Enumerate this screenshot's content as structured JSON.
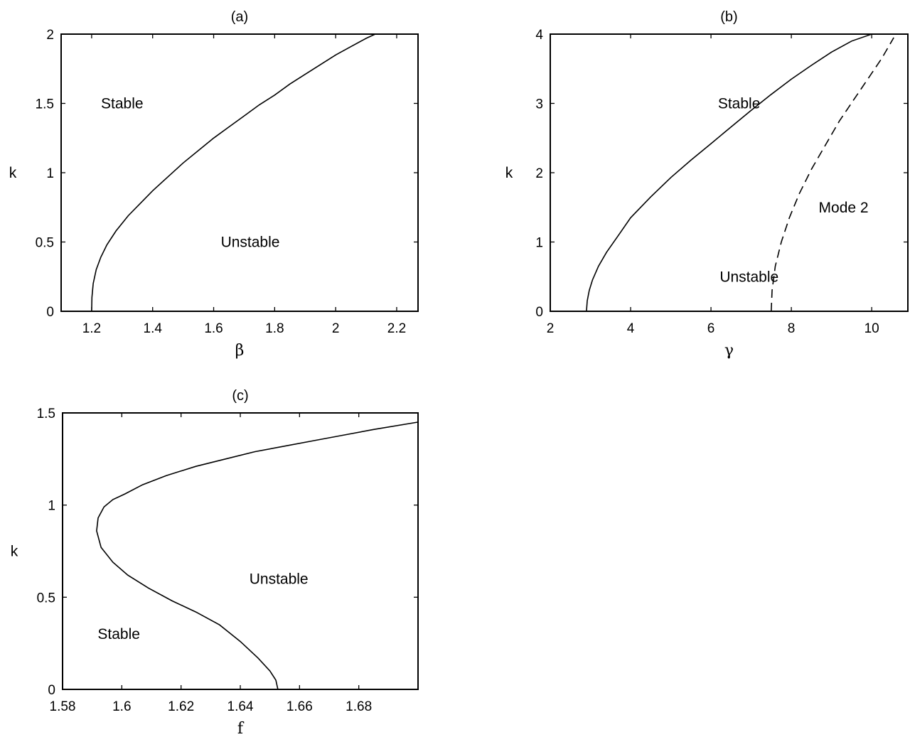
{
  "chart_data": [
    {
      "id": "a",
      "type": "line",
      "title": "(a)",
      "xlabel": "β",
      "ylabel": "k",
      "xlim": [
        1.1,
        2.27
      ],
      "ylim": [
        0,
        2
      ],
      "xticks": [
        1.2,
        1.4,
        1.6,
        1.8,
        2,
        2.2
      ],
      "xtick_labels": [
        "1.2",
        "1.4",
        "1.6",
        "1.8",
        "2",
        "2.2"
      ],
      "yticks": [
        0,
        0.5,
        1,
        1.5,
        2
      ],
      "ytick_labels": [
        "0",
        "0.5",
        "1",
        "1.5",
        "2"
      ],
      "grid": false,
      "series": [
        {
          "style": "solid",
          "x": [
            1.2,
            1.201,
            1.205,
            1.215,
            1.23,
            1.25,
            1.28,
            1.32,
            1.36,
            1.4,
            1.45,
            1.5,
            1.55,
            1.6,
            1.65,
            1.7,
            1.75,
            1.8,
            1.85,
            1.9,
            1.95,
            2.0,
            2.05,
            2.1,
            2.13
          ],
          "y": [
            0,
            0.1,
            0.2,
            0.3,
            0.39,
            0.48,
            0.58,
            0.69,
            0.78,
            0.87,
            0.97,
            1.07,
            1.16,
            1.25,
            1.33,
            1.41,
            1.49,
            1.56,
            1.64,
            1.71,
            1.78,
            1.85,
            1.91,
            1.97,
            2.0
          ]
        }
      ],
      "annotations": [
        {
          "text": "Stable",
          "x": 1.3,
          "y": 1.5
        },
        {
          "text": "Unstable",
          "x": 1.72,
          "y": 0.5
        }
      ]
    },
    {
      "id": "b",
      "type": "line",
      "title": "(b)",
      "xlabel": "γ",
      "ylabel": "k",
      "xlim": [
        2,
        10.9
      ],
      "ylim": [
        0,
        4
      ],
      "xticks": [
        2,
        4,
        6,
        8,
        10
      ],
      "xtick_labels": [
        "2",
        "4",
        "6",
        "8",
        "10"
      ],
      "yticks": [
        0,
        1,
        2,
        3,
        4
      ],
      "ytick_labels": [
        "0",
        "1",
        "2",
        "3",
        "4"
      ],
      "grid": false,
      "series": [
        {
          "style": "solid",
          "x": [
            2.9,
            2.92,
            2.97,
            3.05,
            3.2,
            3.4,
            3.7,
            4.0,
            4.5,
            5.0,
            5.5,
            6.0,
            6.5,
            7.0,
            7.5,
            8.0,
            8.5,
            9.0,
            9.5,
            10.0,
            10.2
          ],
          "y": [
            0,
            0.15,
            0.3,
            0.45,
            0.65,
            0.85,
            1.1,
            1.35,
            1.65,
            1.93,
            2.18,
            2.42,
            2.66,
            2.9,
            3.13,
            3.35,
            3.55,
            3.74,
            3.9,
            4.0,
            4.0
          ]
        },
        {
          "style": "dashed",
          "x": [
            7.5,
            7.52,
            7.6,
            7.75,
            7.95,
            8.2,
            8.5,
            8.85,
            9.2,
            9.55,
            9.9,
            10.25,
            10.55
          ],
          "y": [
            0,
            0.3,
            0.65,
            1.0,
            1.35,
            1.7,
            2.05,
            2.4,
            2.75,
            3.05,
            3.35,
            3.65,
            3.95
          ]
        }
      ],
      "annotations": [
        {
          "text": "Stable",
          "x": 6.7,
          "y": 3.0
        },
        {
          "text": "Unstable",
          "x": 6.95,
          "y": 0.5
        },
        {
          "text": "Mode 2",
          "x": 9.3,
          "y": 1.5
        }
      ]
    },
    {
      "id": "c",
      "type": "line",
      "title": "(c)",
      "xlabel": "f",
      "ylabel": "k",
      "xlim": [
        1.58,
        1.7
      ],
      "ylim": [
        0,
        1.5
      ],
      "xticks": [
        1.58,
        1.6,
        1.62,
        1.64,
        1.66,
        1.68
      ],
      "xtick_labels": [
        "1.58",
        "1.6",
        "1.62",
        "1.64",
        "1.66",
        "1.68"
      ],
      "yticks": [
        0,
        0.5,
        1,
        1.5
      ],
      "ytick_labels": [
        "0",
        "0.5",
        "1",
        "1.5"
      ],
      "grid": false,
      "series": [
        {
          "style": "solid",
          "x": [
            1.6527,
            1.652,
            1.65,
            1.646,
            1.64,
            1.633,
            1.625,
            1.617,
            1.609,
            1.602,
            1.597,
            1.593,
            1.5915,
            1.592,
            1.594,
            1.597,
            1.601,
            1.607,
            1.615,
            1.625,
            1.635,
            1.645,
            1.655,
            1.665,
            1.675,
            1.685,
            1.6999
          ],
          "y": [
            0,
            0.05,
            0.1,
            0.17,
            0.26,
            0.35,
            0.42,
            0.48,
            0.55,
            0.62,
            0.69,
            0.77,
            0.86,
            0.93,
            0.99,
            1.03,
            1.06,
            1.11,
            1.16,
            1.21,
            1.25,
            1.29,
            1.32,
            1.35,
            1.38,
            1.41,
            1.45
          ]
        }
      ],
      "annotations": [
        {
          "text": "Unstable",
          "x": 1.653,
          "y": 0.6
        },
        {
          "text": "Stable",
          "x": 1.599,
          "y": 0.3
        }
      ]
    }
  ]
}
